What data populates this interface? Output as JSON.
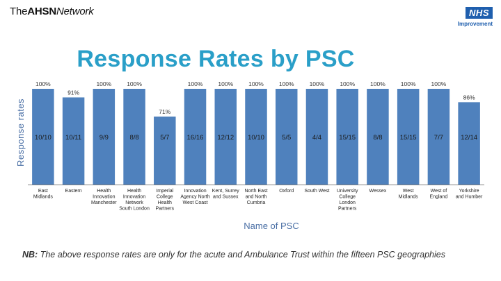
{
  "header": {
    "brand_prefix": "The",
    "brand_bold": "AHSN",
    "brand_suffix": "Network",
    "nhs_mark": "NHS",
    "nhs_sub": "Improvement"
  },
  "footnote": {
    "prefix": "NB:",
    "text": " The above response rates are only for the acute and Ambulance Trust within the fifteen PSC geographies"
  },
  "chart_data": {
    "type": "bar",
    "title": "Response Rates by PSC",
    "xlabel": "Name of PSC",
    "ylabel": "Response rates",
    "ylim": [
      0,
      100
    ],
    "grid": false,
    "legend": "none",
    "bar_color": "#4f81bd",
    "categories": [
      "East Midlands",
      "Eastern",
      "Health Innovation Manchester",
      "Health Innovation Network South London",
      "Imperial College Health Partners",
      "Innovation Agency North West Coast",
      "Kent, Surrey and Sussex",
      "North East and North Cumbria",
      "Oxford",
      "South West",
      "University College London Partners",
      "Wessex",
      "West Midlands",
      "West of England",
      "Yorkshire and Humber"
    ],
    "values": [
      100,
      91,
      100,
      100,
      71,
      100,
      100,
      100,
      100,
      100,
      100,
      100,
      100,
      100,
      86
    ],
    "value_labels": [
      "100%",
      "91%",
      "100%",
      "100%",
      "71%",
      "100%",
      "100%",
      "100%",
      "100%",
      "100%",
      "100%",
      "100%",
      "100%",
      "100%",
      "86%"
    ],
    "count_labels": [
      "10/10",
      "10/11",
      "9/9",
      "8/8",
      "5/7",
      "16/16",
      "12/12",
      "10/10",
      "5/5",
      "4/4",
      "15/15",
      "8/8",
      "15/15",
      "7/7",
      "12/14"
    ]
  }
}
